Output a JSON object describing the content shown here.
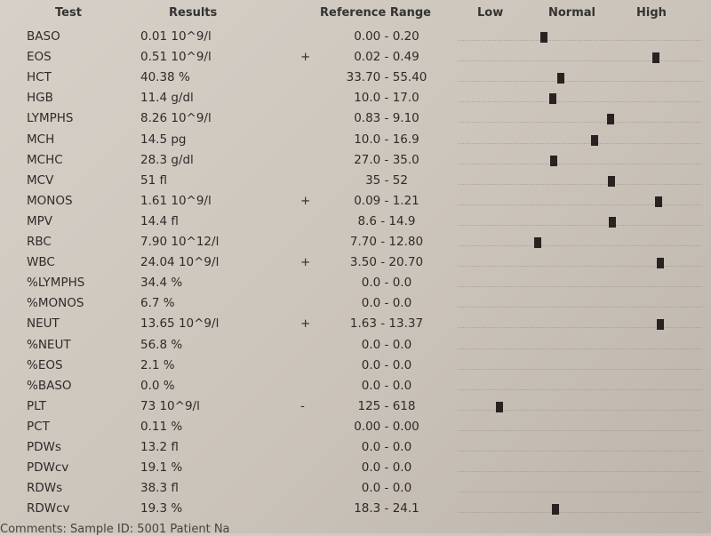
{
  "header": {
    "test": "Test",
    "results": "Results",
    "range": "Reference Range",
    "low": "Low",
    "normal": "Normal",
    "high": "High"
  },
  "rows": [
    {
      "test": "BASO",
      "result": "0.01 10^9/l",
      "range": "0.00 - 0.20"
    },
    {
      "test": "EOS",
      "result": "0.51 10^9/l",
      "flag": "+",
      "range": "0.02 - 0.49"
    },
    {
      "test": "HCT",
      "result": "40.38 %",
      "range": "33.70 - 55.40"
    },
    {
      "test": "HGB",
      "result": "11.4 g/dl",
      "range": "10.0 - 17.0"
    },
    {
      "test": "LYMPHS",
      "result": "8.26 10^9/l",
      "range": "0.83 - 9.10"
    },
    {
      "test": "MCH",
      "result": "14.5 pg",
      "range": "10.0 - 16.9"
    },
    {
      "test": "MCHC",
      "result": "28.3 g/dl",
      "range": "27.0 - 35.0"
    },
    {
      "test": "MCV",
      "result": "51 fl",
      "range": "35 - 52"
    },
    {
      "test": "MONOS",
      "result": "1.61 10^9/l",
      "flag": "+",
      "range": "0.09 - 1.21"
    },
    {
      "test": "MPV",
      "result": "14.4 fl",
      "range": "8.6 - 14.9"
    },
    {
      "test": "RBC",
      "result": "7.90 10^12/l",
      "range": "7.70 - 12.80"
    },
    {
      "test": "WBC",
      "result": "24.04 10^9/l",
      "flag": "+",
      "range": "3.50 - 20.70"
    },
    {
      "test": "%LYMPHS",
      "result": "34.4 %",
      "range": "0.0 - 0.0"
    },
    {
      "test": "%MONOS",
      "result": "6.7 %",
      "range": "0.0 - 0.0"
    },
    {
      "test": "NEUT",
      "result": "13.65 10^9/l",
      "flag": "+",
      "range": "1.63 - 13.37"
    },
    {
      "test": "%NEUT",
      "result": "56.8 %",
      "range": "0.0 - 0.0"
    },
    {
      "test": "%EOS",
      "result": "2.1 %",
      "range": "0.0 - 0.0"
    },
    {
      "test": "%BASO",
      "result": "0.0 %",
      "range": "0.0 - 0.0"
    },
    {
      "test": "PLT",
      "result": "73 10^9/l",
      "flag": "-",
      "range": "125 - 618"
    },
    {
      "test": "PCT",
      "result": "0.11 %",
      "range": "0.00 - 0.00"
    },
    {
      "test": "PDWs",
      "result": "13.2 fl",
      "range": "0.0 - 0.0"
    },
    {
      "test": "PDWcv",
      "result": "19.1 %",
      "range": "0.0 - 0.0"
    },
    {
      "test": "RDWs",
      "result": "38.3 fl",
      "range": "0.0 - 0.0"
    },
    {
      "test": "RDWcv",
      "result": "19.3 %",
      "range": "18.3 - 24.1"
    }
  ],
  "footer": "Comments:   Sample ID: 5001 Patient Na"
}
